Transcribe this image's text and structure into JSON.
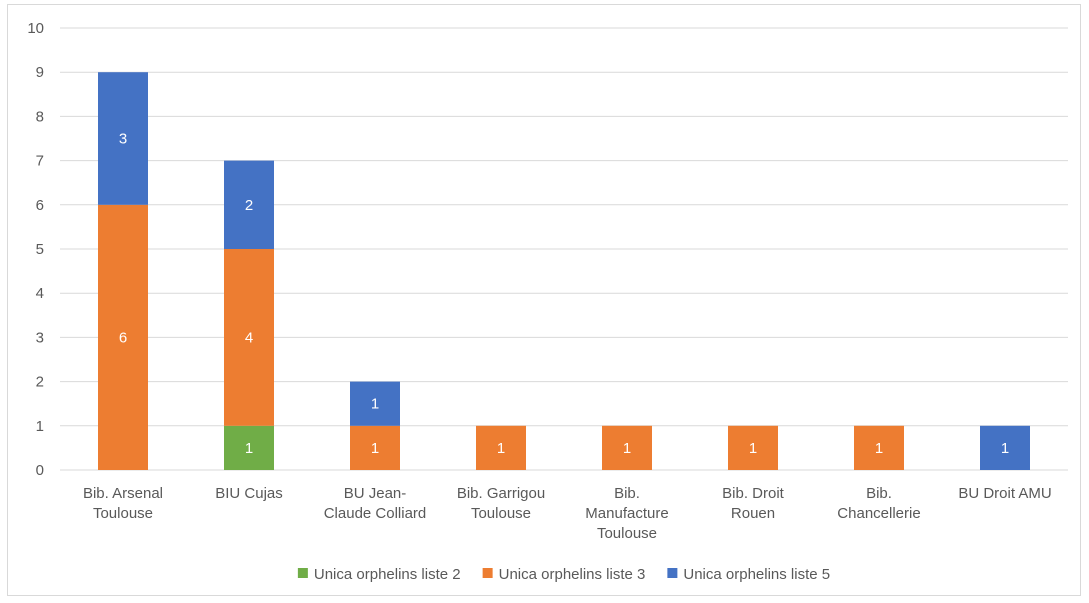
{
  "chart_data": {
    "type": "bar",
    "stacked": true,
    "title": "",
    "xlabel": "",
    "ylabel": "",
    "ylim": [
      0,
      10
    ],
    "yticks": [
      0,
      1,
      2,
      3,
      4,
      5,
      6,
      7,
      8,
      9,
      10
    ],
    "grid": true,
    "legend_position": "bottom",
    "categories": [
      [
        "Bib. Arsenal",
        "Toulouse"
      ],
      [
        "BIU Cujas"
      ],
      [
        "BU Jean-",
        "Claude Colliard"
      ],
      [
        "Bib. Garrigou",
        "Toulouse"
      ],
      [
        "Bib.",
        "Manufacture",
        "Toulouse"
      ],
      [
        "Bib. Droit",
        "Rouen"
      ],
      [
        "Bib.",
        "Chancellerie"
      ],
      [
        "BU Droit AMU"
      ]
    ],
    "series": [
      {
        "name": "Unica orphelins liste 2",
        "color": "#70ad47",
        "values": [
          0,
          1,
          0,
          0,
          0,
          0,
          0,
          0
        ]
      },
      {
        "name": "Unica orphelins liste 3",
        "color": "#ed7d31",
        "values": [
          6,
          4,
          1,
          1,
          1,
          1,
          1,
          0
        ]
      },
      {
        "name": "Unica orphelins liste 5",
        "color": "#4472c4",
        "values": [
          3,
          2,
          1,
          0,
          0,
          0,
          0,
          1
        ]
      }
    ],
    "show_data_labels": true
  }
}
